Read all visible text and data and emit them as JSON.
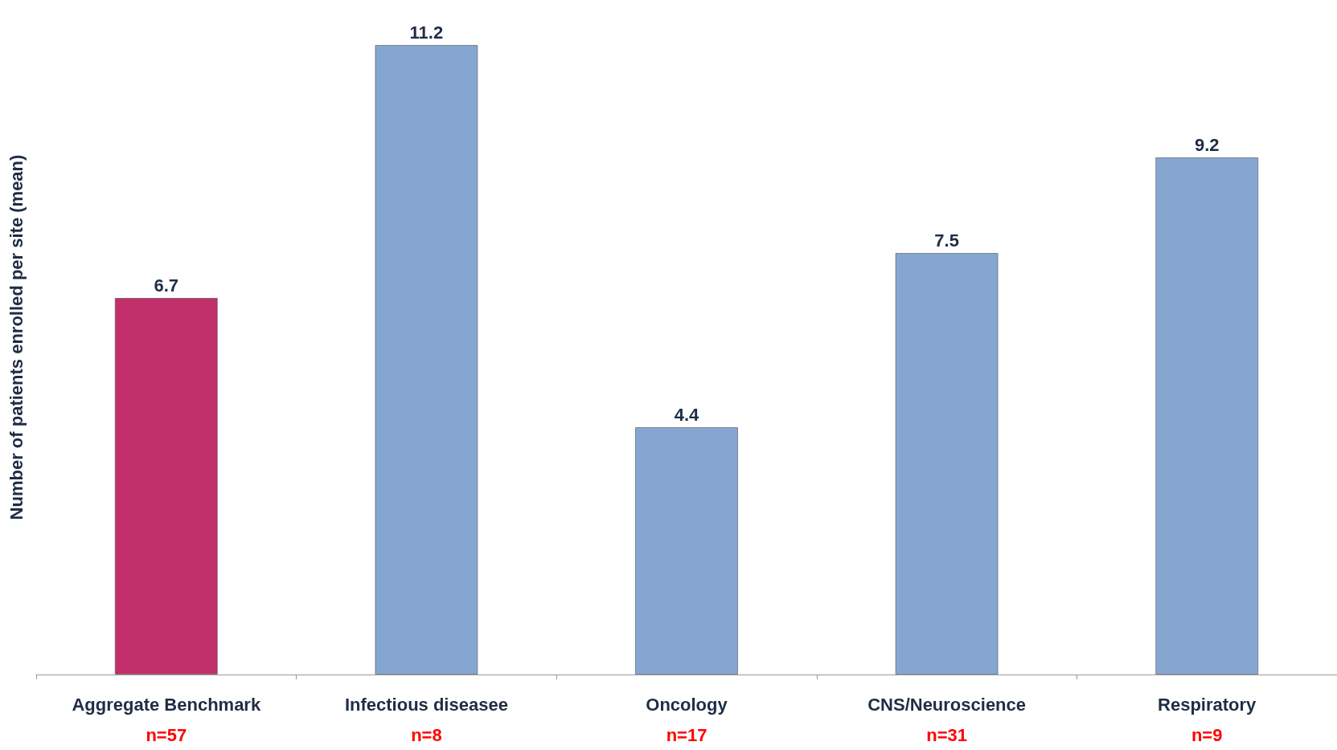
{
  "chart_data": {
    "type": "bar",
    "ylabel": "Number of patients enrolled per site (mean)",
    "categories": [
      "Aggregate Benchmark",
      "Infectious diseasee",
      "Oncology",
      "CNS/Neuroscience",
      "Respiratory"
    ],
    "values": [
      6.7,
      11.2,
      4.4,
      7.5,
      9.2
    ],
    "colors": [
      "#c2306c",
      "#86a6d2",
      "#86a6d2",
      "#86a6d2",
      "#86a6d2"
    ],
    "data_labels": true,
    "grid": false,
    "annotations": [
      "n=57",
      "n=8",
      "n=17",
      "n=31",
      "n=9"
    ]
  }
}
